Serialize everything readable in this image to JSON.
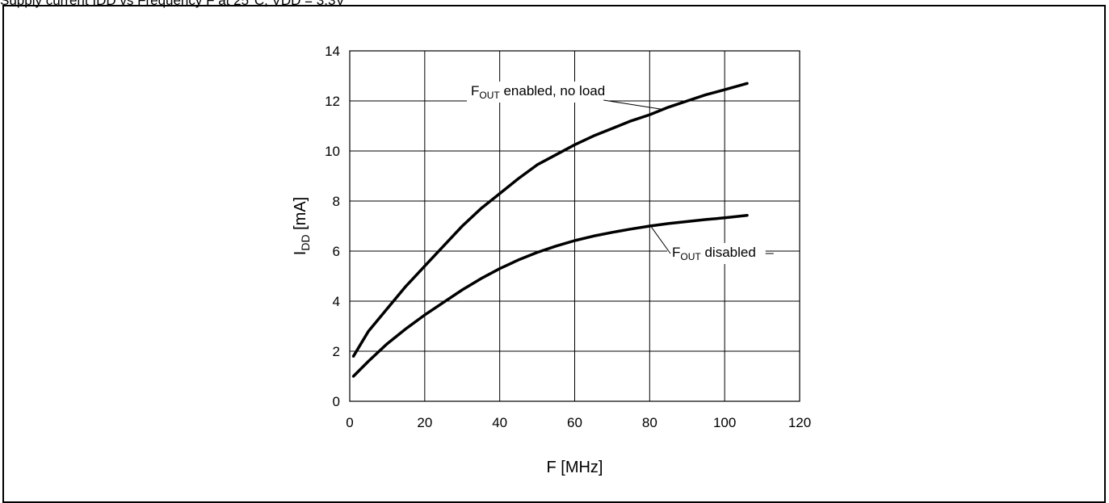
{
  "caption": "Supply current I",
  "caption_tail": "DD vs Frequency F at 25°C, VDD = 3.3V",
  "chart_data": {
    "type": "line",
    "xlabel": "F [MHz]",
    "ylabel_main": "I",
    "ylabel_sub": "DD",
    "ylabel_unit": " [mA]",
    "xlim": [
      0,
      120
    ],
    "ylim": [
      0,
      14
    ],
    "xticks": [
      0,
      20,
      40,
      60,
      80,
      100,
      120
    ],
    "yticks": [
      0,
      2,
      4,
      6,
      8,
      10,
      12,
      14
    ],
    "grid": true,
    "series": [
      {
        "name": "F_OUT enabled, no load",
        "label_main": "F",
        "label_sub": "OUT",
        "label_rest": " enabled, no load",
        "x": [
          1,
          5,
          10,
          15,
          20,
          25,
          30,
          35,
          40,
          45,
          50,
          55,
          60,
          65,
          70,
          75,
          80,
          85,
          90,
          95,
          100,
          106
        ],
        "y": [
          1.8,
          2.8,
          3.7,
          4.6,
          5.4,
          6.2,
          7.0,
          7.7,
          8.3,
          8.9,
          9.45,
          9.85,
          10.25,
          10.6,
          10.9,
          11.2,
          11.45,
          11.75,
          12.0,
          12.25,
          12.45,
          12.7
        ]
      },
      {
        "name": "F_OUT disabled",
        "label_main": "F",
        "label_sub": "OUT",
        "label_rest": " disabled",
        "x": [
          1,
          5,
          10,
          15,
          20,
          25,
          30,
          35,
          40,
          45,
          50,
          55,
          60,
          65,
          70,
          75,
          80,
          85,
          90,
          95,
          100,
          106
        ],
        "y": [
          1.0,
          1.6,
          2.3,
          2.9,
          3.45,
          3.95,
          4.45,
          4.9,
          5.3,
          5.65,
          5.95,
          6.2,
          6.42,
          6.6,
          6.75,
          6.88,
          7.0,
          7.1,
          7.18,
          7.26,
          7.33,
          7.43
        ]
      }
    ]
  }
}
